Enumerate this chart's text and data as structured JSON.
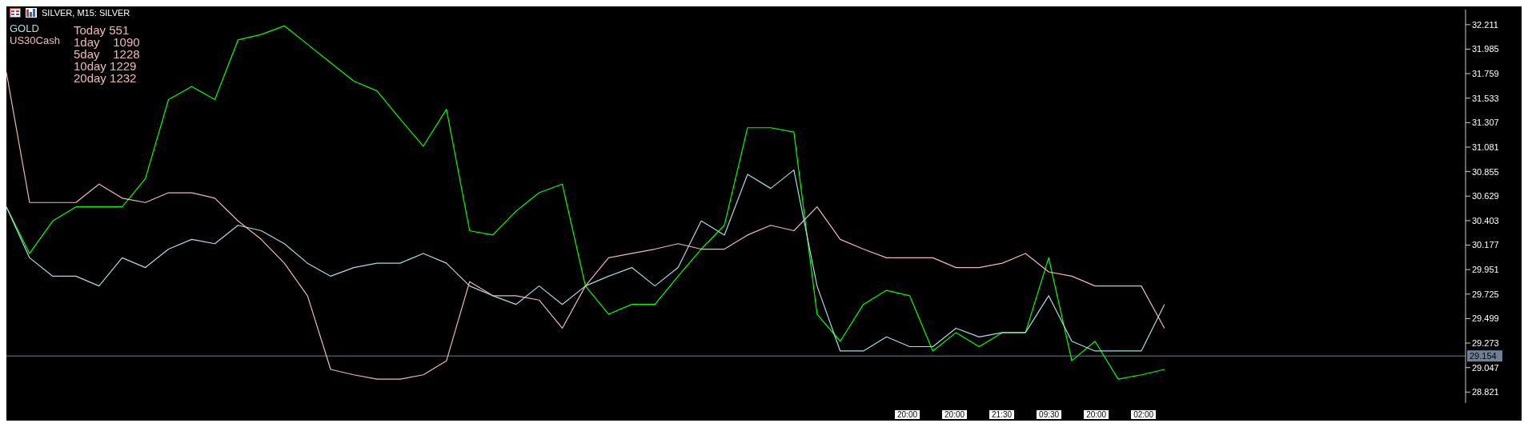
{
  "chart_data": {
    "type": "line",
    "title": "SILVER, M15: SILVER",
    "categories": [
      null,
      null,
      null,
      null,
      null,
      null,
      null,
      null,
      null,
      null,
      null,
      null,
      null,
      null,
      null,
      null,
      null,
      null,
      null,
      null,
      null,
      null,
      null,
      null,
      null,
      null,
      null,
      null,
      null,
      null,
      null,
      null,
      null,
      null,
      null,
      null,
      null,
      null,
      null,
      null,
      null,
      null,
      null,
      null,
      null,
      null,
      null,
      null,
      null,
      null,
      null,
      null,
      null,
      null,
      null,
      null,
      null,
      null,
      null,
      null,
      null,
      null,
      null,
      null
    ],
    "series": [
      {
        "color": "#00ff00",
        "values": [
          30.53,
          30.1,
          30.4,
          30.53,
          30.53,
          30.53,
          30.79,
          31.52,
          31.64,
          31.52,
          32.07,
          32.12,
          32.2,
          32.03,
          31.86,
          31.69,
          31.6,
          31.34,
          31.09,
          31.43,
          30.31,
          30.27,
          30.49,
          30.66,
          30.74,
          29.8,
          29.54,
          29.63,
          29.63,
          29.89,
          30.14,
          30.36,
          31.26,
          31.26,
          31.22,
          29.54,
          29.29,
          29.63,
          29.76,
          29.71,
          29.2,
          29.37,
          29.24,
          29.37,
          29.37,
          30.06,
          29.11,
          29.29,
          28.94,
          28.98,
          29.03,
          null,
          null,
          null,
          null,
          null,
          null,
          null,
          null,
          null,
          null,
          null,
          null,
          null
        ]
      },
      {
        "name": "GOLD",
        "color": "#a8dce8",
        "values": [
          30.53,
          30.06,
          29.89,
          29.89,
          29.8,
          30.06,
          29.97,
          30.14,
          30.23,
          30.19,
          30.36,
          30.31,
          30.19,
          30.01,
          29.89,
          29.97,
          30.01,
          30.01,
          30.1,
          30.01,
          29.8,
          29.71,
          29.63,
          29.8,
          29.63,
          29.8,
          29.89,
          29.97,
          29.8,
          29.97,
          30.4,
          30.27,
          30.83,
          30.7,
          30.87,
          29.8,
          29.2,
          29.2,
          29.33,
          29.24,
          29.24,
          29.41,
          29.33,
          29.37,
          29.37,
          29.71,
          29.29,
          29.2,
          29.2,
          29.2,
          29.63,
          null,
          null,
          null,
          null,
          null,
          null,
          null,
          null,
          null,
          null,
          null,
          null,
          null
        ]
      },
      {
        "name": "US30Cash",
        "color": "#f2b8b8",
        "values": [
          31.77,
          30.57,
          30.57,
          30.57,
          30.74,
          30.61,
          30.57,
          30.66,
          30.66,
          30.61,
          30.4,
          30.23,
          30.01,
          29.71,
          29.03,
          28.98,
          28.94,
          28.94,
          28.98,
          29.11,
          29.84,
          29.71,
          29.71,
          29.67,
          29.41,
          29.8,
          30.06,
          30.1,
          30.14,
          30.19,
          30.14,
          30.14,
          30.27,
          30.36,
          30.31,
          30.53,
          30.23,
          30.14,
          30.06,
          30.06,
          30.06,
          29.97,
          29.97,
          30.01,
          30.1,
          29.93,
          29.89,
          29.8,
          29.8,
          29.8,
          29.41,
          null,
          null,
          null,
          null,
          null,
          null,
          null,
          null,
          null,
          null,
          null,
          null,
          null
        ]
      }
    ],
    "ylim": [
      28.72,
      32.35
    ],
    "yticks": [
      28.821,
      29.047,
      29.273,
      29.499,
      29.725,
      29.951,
      30.177,
      30.403,
      30.629,
      30.855,
      31.081,
      31.307,
      31.533,
      31.759,
      31.985,
      32.211
    ],
    "ref_lines": [
      {
        "axis": "y",
        "value": 29.154,
        "label": "29.154",
        "color": "#6d8196"
      }
    ],
    "annotations": [
      "Today 551",
      "1day    1090",
      "5day    1228",
      "10day 1229",
      "20day 1232",
      "20:00",
      "20:00",
      "21:30",
      "09:30",
      "20:00",
      "02:00"
    ],
    "legend": "top left",
    "grid": false,
    "tick_labels": "y",
    "marker": "none",
    "line_style": "solid"
  }
}
